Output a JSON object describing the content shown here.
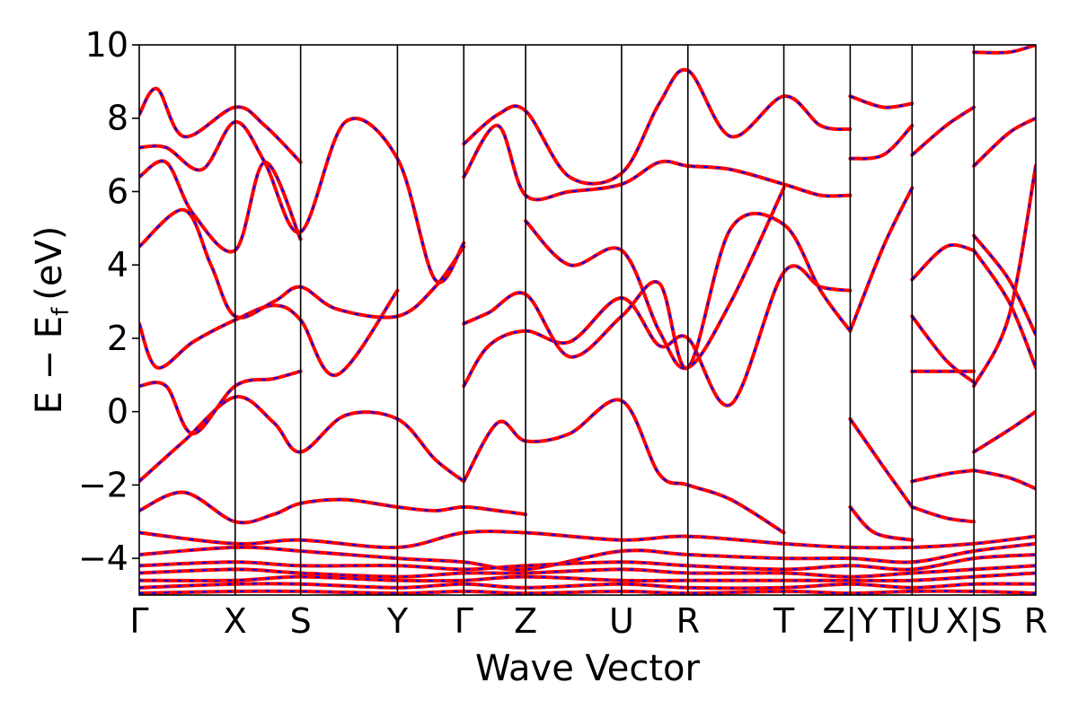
{
  "chart_data": {
    "type": "line",
    "title": "",
    "xlabel": "Wave Vector",
    "ylabel": "E − E",
    "ylabel_subscript": "f",
    "ylabel_unit": "(eV)",
    "ylim": [
      -5,
      10
    ],
    "yticks": [
      -4,
      -2,
      0,
      2,
      4,
      6,
      8,
      10
    ],
    "ytick_labels": [
      "−4",
      "−2",
      "0",
      "2",
      "4",
      "6",
      "8",
      "10"
    ],
    "xlim": [
      0,
      10
    ],
    "high_symmetry_points": [
      {
        "label": "Γ",
        "x": 0.0
      },
      {
        "label": "X",
        "x": 1.07
      },
      {
        "label": "S",
        "x": 1.8
      },
      {
        "label": "Y",
        "x": 2.88
      },
      {
        "label": "Γ",
        "x": 3.62
      },
      {
        "label": "Z",
        "x": 4.31
      },
      {
        "label": "U",
        "x": 5.38
      },
      {
        "label": "R",
        "x": 6.12
      },
      {
        "label": "T",
        "x": 7.19
      },
      {
        "label": "Z|Y",
        "x": 7.93
      },
      {
        "label": "T|U",
        "x": 8.62
      },
      {
        "label": "X|S",
        "x": 9.31
      },
      {
        "label": "R",
        "x": 10.0
      }
    ],
    "grid": false,
    "legend": "none",
    "series": [
      {
        "style": "red-solid",
        "color": "#ff0000"
      },
      {
        "style": "blue-dashed",
        "color": "#0000ff"
      }
    ],
    "bands": [
      {
        "x": [
          0,
          0.5,
          1.07,
          1.5,
          1.8,
          2.3,
          2.88,
          3.3,
          3.62,
          4.0,
          4.31
        ],
        "y": [
          -2.7,
          -2.2,
          -3.0,
          -2.8,
          -2.5,
          -2.4,
          -2.6,
          -2.7,
          -2.6,
          -2.7,
          -2.8
        ]
      },
      {
        "x": [
          0,
          0.5,
          1.07,
          1.5,
          1.8,
          2.3,
          2.88,
          3.3,
          3.62
        ],
        "y": [
          -1.9,
          -0.8,
          0.4,
          -0.3,
          -1.1,
          -0.1,
          -0.2,
          -1.3,
          -1.9
        ]
      },
      {
        "x": [
          0,
          0.3,
          0.6,
          1.07,
          1.5,
          1.8
        ],
        "y": [
          0.7,
          0.7,
          -0.6,
          0.7,
          0.9,
          1.1
        ]
      },
      {
        "x": [
          0,
          0.2,
          0.6,
          1.07,
          1.5,
          1.8,
          2.2,
          2.88
        ],
        "y": [
          2.4,
          1.2,
          1.9,
          2.5,
          2.9,
          2.5,
          1.0,
          3.3
        ]
      },
      {
        "x": [
          0,
          0.5,
          0.8,
          1.07,
          1.5,
          1.8,
          2.2,
          2.88,
          3.3,
          3.62
        ],
        "y": [
          4.5,
          5.5,
          4.0,
          2.6,
          3.0,
          3.4,
          2.8,
          2.6,
          3.4,
          4.5
        ]
      },
      {
        "x": [
          0,
          0.3,
          0.6,
          1.07,
          1.4,
          1.8
        ],
        "y": [
          6.4,
          6.8,
          5.4,
          4.4,
          6.8,
          4.7
        ]
      },
      {
        "x": [
          0,
          0.3,
          0.7,
          1.07,
          1.4,
          1.8,
          2.3,
          2.88,
          3.3,
          3.62
        ],
        "y": [
          7.2,
          7.2,
          6.6,
          7.9,
          6.8,
          4.9,
          7.9,
          6.9,
          3.6,
          4.6
        ]
      },
      {
        "x": [
          0,
          0.2,
          0.5,
          1.07,
          1.4,
          1.8
        ],
        "y": [
          8.1,
          8.8,
          7.5,
          8.3,
          7.8,
          6.8
        ]
      },
      {
        "x": [
          3.62,
          4.0,
          4.31,
          4.8,
          5.38,
          5.8,
          6.12,
          6.6,
          7.19
        ],
        "y": [
          -1.9,
          -0.3,
          -0.8,
          -0.6,
          0.3,
          -1.7,
          -2.0,
          -2.4,
          -3.3
        ]
      },
      {
        "x": [
          3.62,
          3.9,
          4.31,
          4.8,
          5.38,
          5.8,
          6.12,
          6.6,
          7.19,
          7.6,
          7.93
        ],
        "y": [
          0.7,
          1.8,
          2.2,
          1.9,
          3.1,
          1.8,
          2.0,
          0.2,
          3.8,
          3.4,
          3.3
        ]
      },
      {
        "x": [
          3.62,
          3.9,
          4.31,
          4.8,
          5.38,
          5.8,
          6.12,
          6.6,
          7.19,
          7.6,
          7.93
        ],
        "y": [
          2.4,
          2.7,
          3.2,
          1.5,
          2.6,
          3.5,
          1.2,
          5.0,
          5.1,
          3.3,
          2.2
        ]
      },
      {
        "x": [
          3.62,
          4.0,
          4.31,
          4.8,
          5.38,
          5.8,
          6.12,
          6.6,
          7.19,
          7.6,
          7.93
        ],
        "y": [
          6.4,
          7.8,
          5.9,
          6.0,
          6.2,
          6.8,
          6.7,
          6.6,
          6.2,
          5.9,
          5.9
        ]
      },
      {
        "x": [
          3.62,
          4.0,
          4.31,
          4.8,
          5.38,
          5.8,
          6.12,
          6.6,
          7.19,
          7.6,
          7.93
        ],
        "y": [
          7.3,
          8.1,
          8.2,
          6.4,
          6.5,
          8.4,
          9.3,
          7.5,
          8.6,
          7.8,
          7.7
        ]
      },
      {
        "x": [
          4.31,
          4.8,
          5.38,
          5.8,
          6.12,
          6.6,
          7.19
        ],
        "y": [
          5.2,
          4.0,
          4.4,
          2.2,
          1.2,
          3.0,
          6.1
        ]
      },
      {
        "x": [
          7.93,
          8.2,
          8.62
        ],
        "y": [
          -2.6,
          -3.3,
          -3.5
        ]
      },
      {
        "x": [
          7.93,
          8.3,
          8.62
        ],
        "y": [
          -0.2,
          -1.5,
          -2.6
        ]
      },
      {
        "x": [
          7.93,
          8.3,
          8.62
        ],
        "y": [
          2.2,
          4.5,
          6.1
        ]
      },
      {
        "x": [
          7.93,
          8.3,
          8.62
        ],
        "y": [
          6.9,
          7.0,
          7.8
        ]
      },
      {
        "x": [
          7.93,
          8.3,
          8.62
        ],
        "y": [
          8.6,
          8.3,
          8.4
        ]
      },
      {
        "x": [
          8.62,
          9.0,
          9.31
        ],
        "y": [
          -2.6,
          -2.9,
          -3.0
        ]
      },
      {
        "x": [
          8.62,
          9.0,
          9.31
        ],
        "y": [
          -1.9,
          -1.7,
          -1.6
        ]
      },
      {
        "x": [
          8.62,
          9.0,
          9.31
        ],
        "y": [
          2.6,
          1.4,
          0.8
        ]
      },
      {
        "x": [
          8.62,
          9.0,
          9.31
        ],
        "y": [
          1.1,
          1.1,
          1.1
        ]
      },
      {
        "x": [
          8.62,
          9.0,
          9.31
        ],
        "y": [
          3.6,
          4.5,
          4.4
        ]
      },
      {
        "x": [
          8.62,
          9.0,
          9.31
        ],
        "y": [
          7.0,
          7.8,
          8.3
        ]
      },
      {
        "x": [
          9.31,
          9.7,
          10.0
        ],
        "y": [
          -1.1,
          -0.5,
          0.0
        ]
      },
      {
        "x": [
          9.31,
          9.7,
          10.0
        ],
        "y": [
          -1.6,
          -1.8,
          -2.1
        ]
      },
      {
        "x": [
          9.31,
          9.7,
          10.0
        ],
        "y": [
          0.7,
          2.6,
          6.7
        ]
      },
      {
        "x": [
          9.31,
          9.7,
          10.0
        ],
        "y": [
          4.4,
          3.0,
          1.2
        ]
      },
      {
        "x": [
          9.31,
          9.7,
          10.0
        ],
        "y": [
          4.8,
          3.6,
          2.1
        ]
      },
      {
        "x": [
          9.31,
          9.7,
          10.0
        ],
        "y": [
          6.7,
          7.6,
          8.0
        ]
      },
      {
        "x": [
          9.31,
          9.7,
          10.0
        ],
        "y": [
          9.8,
          9.8,
          10.0
        ]
      },
      {
        "x": [
          0,
          1.07,
          1.8,
          2.88,
          3.62,
          4.31,
          5.38,
          6.12,
          7.19,
          7.93,
          8.62,
          9.31,
          10.0
        ],
        "y": [
          -3.3,
          -3.6,
          -3.5,
          -3.7,
          -3.3,
          -3.3,
          -3.5,
          -3.4,
          -3.6,
          -3.7,
          -3.7,
          -3.6,
          -3.4
        ]
      },
      {
        "x": [
          0,
          1.07,
          1.8,
          2.88,
          3.62,
          4.31,
          5.38,
          6.12,
          7.19,
          7.93,
          8.62,
          9.31,
          10.0
        ],
        "y": [
          -3.9,
          -3.7,
          -3.8,
          -4.0,
          -4.1,
          -4.3,
          -3.8,
          -3.9,
          -4.0,
          -4.0,
          -4.1,
          -3.8,
          -3.6
        ]
      },
      {
        "x": [
          0,
          1.07,
          1.8,
          2.88,
          3.62,
          4.31,
          5.38,
          6.12,
          7.19,
          7.93,
          8.62,
          9.31,
          10.0
        ],
        "y": [
          -4.2,
          -4.1,
          -4.2,
          -4.2,
          -4.3,
          -4.2,
          -4.1,
          -4.2,
          -4.3,
          -4.2,
          -4.3,
          -4.0,
          -3.9
        ]
      },
      {
        "x": [
          0,
          1.07,
          1.8,
          2.88,
          3.62,
          4.31,
          5.38,
          6.12,
          7.19,
          7.93,
          8.62,
          9.31,
          10.0
        ],
        "y": [
          -4.4,
          -4.3,
          -4.4,
          -4.5,
          -4.4,
          -4.4,
          -4.3,
          -4.4,
          -4.4,
          -4.5,
          -4.4,
          -4.3,
          -4.2
        ]
      },
      {
        "x": [
          0,
          1.07,
          1.8,
          2.88,
          3.62,
          4.31,
          5.38,
          6.12,
          7.19,
          7.93,
          8.62,
          9.31,
          10.0
        ],
        "y": [
          -4.6,
          -4.6,
          -4.5,
          -4.6,
          -4.6,
          -4.5,
          -4.6,
          -4.6,
          -4.6,
          -4.6,
          -4.6,
          -4.5,
          -4.4
        ]
      },
      {
        "x": [
          0,
          1.07,
          1.8,
          2.88,
          3.62,
          4.31,
          5.38,
          6.12,
          7.19,
          7.93,
          8.62,
          9.31,
          10.0
        ],
        "y": [
          -4.8,
          -4.7,
          -4.7,
          -4.8,
          -4.7,
          -4.8,
          -4.7,
          -4.8,
          -4.8,
          -4.7,
          -4.8,
          -4.7,
          -4.7
        ]
      },
      {
        "x": [
          0,
          1.07,
          1.8,
          2.88,
          3.62,
          4.31,
          5.38,
          6.12,
          7.19,
          7.93,
          8.62,
          9.31,
          10.0
        ],
        "y": [
          -4.95,
          -4.9,
          -4.9,
          -4.95,
          -4.9,
          -4.95,
          -4.9,
          -4.95,
          -4.9,
          -4.95,
          -4.9,
          -4.9,
          -4.95
        ]
      }
    ]
  }
}
